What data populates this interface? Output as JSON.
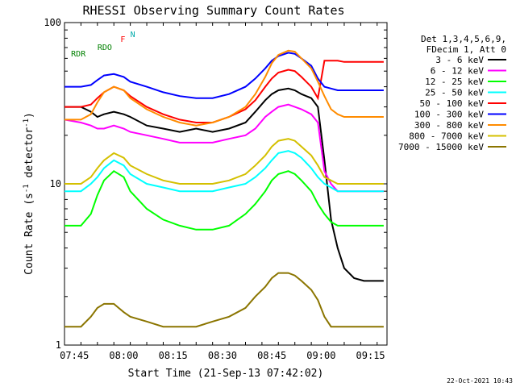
{
  "chart_data": {
    "type": "line",
    "title": "RHESSI Observing Summary Count Rates",
    "xlabel": "Start Time (21-Sep-13 07:42:02)",
    "ylabel_main": "Count Rate (s",
    "ylabel_sup1": "-1",
    "ylabel_mid": " detector",
    "ylabel_sup2": "-1",
    "ylabel_end": ")",
    "y_scale": "log",
    "xlim_minutes": [
      0,
      98
    ],
    "ylim": [
      1,
      100
    ],
    "x_tick_labels": [
      "07:45",
      "08:00",
      "08:15",
      "08:30",
      "08:45",
      "09:00",
      "09:15"
    ],
    "x_tick_minutes": [
      3,
      18,
      33,
      48,
      63,
      78,
      93
    ],
    "y_tick_labels": [
      "1",
      "10",
      "100"
    ],
    "y_tick_values": [
      1,
      10,
      100
    ],
    "legend_header": [
      "Det 1,3,4,5,6,9,",
      "FDecim 1, Att 0"
    ],
    "legend_position": "right",
    "series": [
      {
        "name": "3 - 6 keV",
        "color": "#000000",
        "x": [
          0,
          5,
          8,
          10,
          12,
          15,
          18,
          20,
          25,
          30,
          35,
          40,
          45,
          50,
          55,
          58,
          61,
          63,
          65,
          68,
          70,
          72,
          75,
          77,
          79,
          81,
          83,
          85,
          88,
          91,
          93,
          97
        ],
        "y": [
          30,
          30,
          28,
          26,
          27,
          28,
          27,
          26,
          23,
          22,
          21,
          22,
          21,
          22,
          24,
          28,
          33,
          36,
          38,
          39,
          38,
          36,
          34,
          30,
          14,
          6,
          4,
          3,
          2.6,
          2.5,
          2.5,
          2.5
        ]
      },
      {
        "name": "6 - 12 keV",
        "color": "#ff00ff",
        "x": [
          0,
          5,
          8,
          10,
          12,
          15,
          18,
          20,
          25,
          30,
          35,
          40,
          45,
          50,
          55,
          58,
          61,
          63,
          65,
          68,
          70,
          72,
          75,
          77,
          79,
          81,
          83,
          85,
          88,
          91,
          93,
          97
        ],
        "y": [
          25,
          24,
          23,
          22,
          22,
          23,
          22,
          21,
          20,
          19,
          18,
          18,
          18,
          19,
          20,
          22,
          26,
          28,
          30,
          31,
          30,
          29,
          27,
          24,
          12,
          10,
          9,
          9,
          9,
          9,
          9,
          9
        ]
      },
      {
        "name": "12 - 25 keV",
        "color": "#00ff00",
        "x": [
          0,
          5,
          8,
          10,
          12,
          15,
          18,
          20,
          25,
          30,
          35,
          40,
          45,
          50,
          55,
          58,
          61,
          63,
          65,
          68,
          70,
          72,
          75,
          77,
          79,
          81,
          83,
          85,
          88,
          91,
          93,
          97
        ],
        "y": [
          5.5,
          5.5,
          6.5,
          8.5,
          10.5,
          12,
          11,
          9,
          7,
          6,
          5.5,
          5.2,
          5.2,
          5.5,
          6.5,
          7.5,
          9,
          10.5,
          11.5,
          12,
          11.5,
          10.5,
          9,
          7.5,
          6.5,
          5.8,
          5.5,
          5.5,
          5.5,
          5.5,
          5.5,
          5.5
        ]
      },
      {
        "name": "25 - 50 keV",
        "color": "#00ffff",
        "x": [
          0,
          5,
          8,
          10,
          12,
          15,
          18,
          20,
          25,
          30,
          35,
          40,
          45,
          50,
          55,
          58,
          61,
          63,
          65,
          68,
          70,
          72,
          75,
          77,
          79,
          81,
          83,
          85,
          88,
          91,
          93,
          97
        ],
        "y": [
          9,
          9,
          10,
          11,
          12.5,
          14,
          13,
          11.5,
          10,
          9.5,
          9,
          9,
          9,
          9.5,
          10,
          11,
          12.5,
          14,
          15.5,
          16,
          15.5,
          14.5,
          12.5,
          11,
          10,
          9.5,
          9,
          9,
          9,
          9,
          9,
          9
        ]
      },
      {
        "name": "50 - 100 keV",
        "color": "#ff0000",
        "x": [
          0,
          5,
          8,
          10,
          12,
          15,
          18,
          20,
          25,
          30,
          35,
          40,
          45,
          50,
          55,
          58,
          61,
          63,
          65,
          68,
          70,
          72,
          75,
          77,
          79,
          81,
          83,
          85,
          88,
          91,
          93,
          97
        ],
        "y": [
          30,
          30,
          31,
          34,
          37,
          40,
          38,
          35,
          30,
          27,
          25,
          24,
          24,
          26,
          29,
          33,
          40,
          45,
          49,
          51,
          50,
          46,
          40,
          34,
          58,
          58,
          58,
          57,
          57,
          57,
          57,
          57
        ]
      },
      {
        "name": "100 - 300 keV",
        "color": "#0000ff",
        "x": [
          0,
          5,
          8,
          10,
          12,
          15,
          18,
          20,
          25,
          30,
          35,
          40,
          45,
          50,
          55,
          58,
          61,
          63,
          65,
          68,
          70,
          72,
          75,
          77,
          79,
          81,
          83,
          85,
          88,
          91,
          93,
          97
        ],
        "y": [
          40,
          40,
          41,
          44,
          47,
          48,
          46,
          43,
          40,
          37,
          35,
          34,
          34,
          36,
          40,
          45,
          52,
          58,
          62,
          65,
          64,
          60,
          54,
          45,
          40,
          39,
          38,
          38,
          38,
          38,
          38,
          38
        ]
      },
      {
        "name": "300 - 800 keV",
        "color": "#ff8c00",
        "x": [
          0,
          5,
          8,
          10,
          12,
          15,
          18,
          20,
          25,
          30,
          35,
          40,
          45,
          50,
          55,
          58,
          61,
          63,
          65,
          68,
          70,
          72,
          75,
          77,
          79,
          81,
          83,
          85,
          88,
          91,
          93,
          97
        ],
        "y": [
          25,
          25,
          27,
          32,
          37,
          40,
          38,
          34,
          29,
          26,
          24,
          23,
          24,
          26,
          30,
          36,
          46,
          56,
          63,
          67,
          66,
          60,
          52,
          43,
          35,
          29,
          27,
          26,
          26,
          26,
          26,
          26
        ]
      },
      {
        "name": "800 - 7000 keV",
        "color": "#d4c000",
        "x": [
          0,
          5,
          8,
          10,
          12,
          15,
          18,
          20,
          25,
          30,
          35,
          40,
          45,
          50,
          55,
          58,
          61,
          63,
          65,
          68,
          70,
          72,
          75,
          77,
          79,
          81,
          83,
          85,
          88,
          91,
          93,
          97
        ],
        "y": [
          10,
          10,
          11,
          12.5,
          14,
          15.5,
          14.5,
          13,
          11.5,
          10.5,
          10,
          10,
          10,
          10.5,
          11.5,
          13,
          15,
          17,
          18.5,
          19,
          18.5,
          17,
          15,
          13,
          11,
          10.5,
          10,
          10,
          10,
          10,
          10,
          10
        ]
      },
      {
        "name": "7000 - 15000 keV",
        "color": "#8b7500",
        "x": [
          0,
          5,
          8,
          10,
          12,
          15,
          18,
          20,
          25,
          30,
          35,
          40,
          45,
          50,
          55,
          58,
          61,
          63,
          65,
          68,
          70,
          72,
          75,
          77,
          79,
          81,
          83,
          85,
          88,
          91,
          93,
          97
        ],
        "y": [
          1.3,
          1.3,
          1.5,
          1.7,
          1.8,
          1.8,
          1.6,
          1.5,
          1.4,
          1.3,
          1.3,
          1.3,
          1.4,
          1.5,
          1.7,
          2.0,
          2.3,
          2.6,
          2.8,
          2.8,
          2.7,
          2.5,
          2.2,
          1.9,
          1.5,
          1.3,
          1.3,
          1.3,
          1.3,
          1.3,
          1.3,
          1.3
        ]
      }
    ],
    "annotations": {
      "flag_labels": [
        "RDR",
        "RDO",
        "N",
        "F"
      ],
      "timestamp": "22-Oct-2021 10:43"
    }
  }
}
